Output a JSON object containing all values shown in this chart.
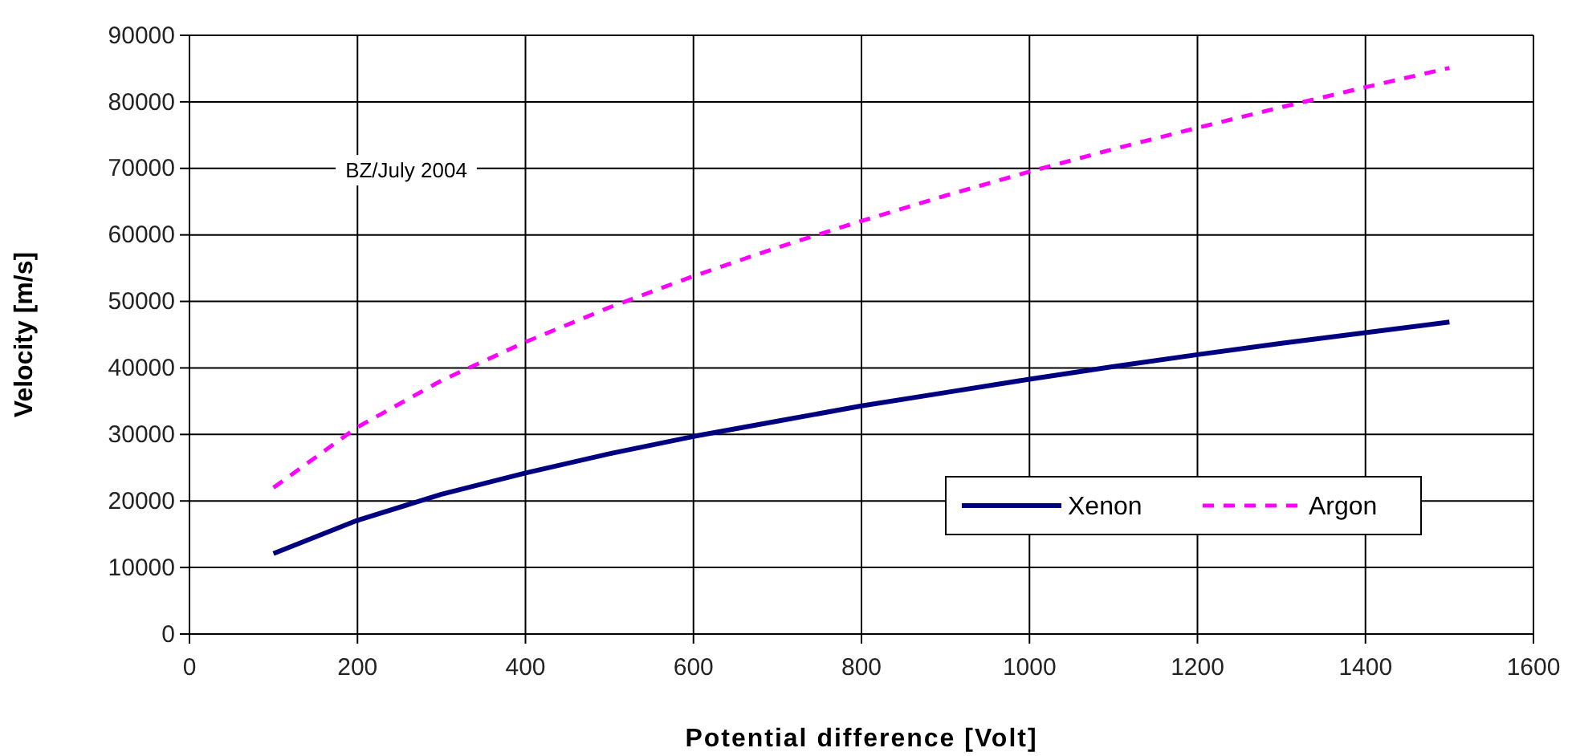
{
  "chart_data": {
    "type": "line",
    "xlabel": "Potential difference [Volt]",
    "ylabel": "Velocity [m/s]",
    "x": [
      100,
      200,
      300,
      400,
      500,
      600,
      700,
      800,
      900,
      1000,
      1100,
      1200,
      1300,
      1400,
      1500
    ],
    "series": [
      {
        "name": "Xenon",
        "color": "#000080",
        "line_style": "solid",
        "values": [
          12100,
          17100,
          21000,
          24200,
          27100,
          29700,
          32000,
          34300,
          36300,
          38300,
          40200,
          42000,
          43700,
          45300,
          46900
        ]
      },
      {
        "name": "Argon",
        "color": "#ff00ff",
        "line_style": "dashed",
        "values": [
          22000,
          31100,
          38100,
          43900,
          49100,
          53800,
          58100,
          62100,
          65900,
          69500,
          72900,
          76100,
          79200,
          82200,
          85100
        ]
      }
    ],
    "xlim": [
      0,
      1600
    ],
    "xticks": [
      0,
      200,
      400,
      600,
      800,
      1000,
      1200,
      1400,
      1600
    ],
    "ylim": [
      0,
      90000
    ],
    "yticks": [
      0,
      10000,
      20000,
      30000,
      40000,
      50000,
      60000,
      70000,
      80000,
      90000
    ],
    "grid": true,
    "legend": "bottom right",
    "marker": "none",
    "annotations": [
      "BZ/July 2004"
    ]
  }
}
